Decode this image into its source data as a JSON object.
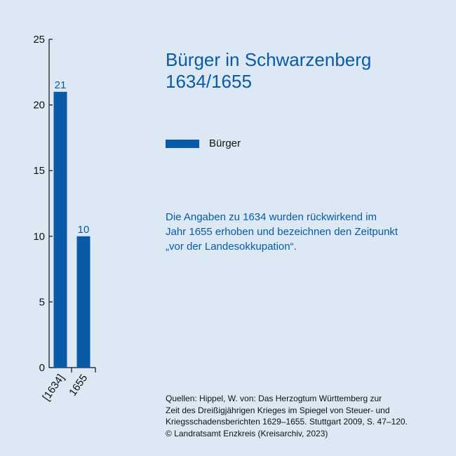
{
  "title": {
    "line1": "Bürger in Schwarzenberg",
    "line2": "1634/1655"
  },
  "note": {
    "line1": "Die Angaben zu 1634 wurden rückwirkend im",
    "line2": "Jahr 1655 erhoben und bezeichnen den Zeitpunkt",
    "line3": "„vor der Landesokkupation“."
  },
  "sources": {
    "line1": "Quellen: Hippel, W. von: Das Herzogtum Württemberg zur",
    "line2": "Zeit des Dreißigjährigen Krieges im Spiegel von Steuer- und",
    "line3": "Kriegsschadensberichten 1629–1655. Stuttgart 2009, S. 47–120.",
    "line4": "© Landratsamt Enzkreis (Kreisarchiv, 2023)"
  },
  "colors": {
    "bar": "#0a5aa8",
    "background": "#dce8f4",
    "axis": "#111111"
  },
  "chart_data": {
    "type": "bar",
    "categories": [
      "[1634]",
      "1655"
    ],
    "series": [
      {
        "name": "Bürger",
        "values": [
          21,
          10
        ]
      }
    ],
    "ylim": [
      0,
      25
    ],
    "yticks": [
      0,
      5,
      10,
      15,
      20,
      25
    ],
    "data_labels": [
      "21",
      "10"
    ],
    "legend": "right"
  }
}
